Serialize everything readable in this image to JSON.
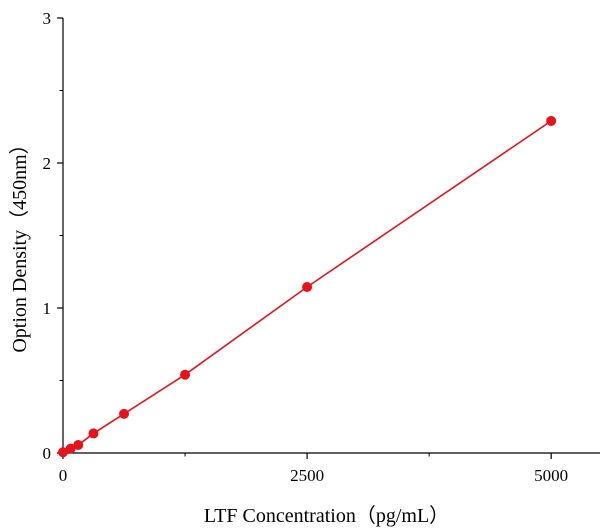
{
  "chart_data": {
    "type": "scatter",
    "title": "",
    "xlabel": "LTF Concentration（pg/mL）",
    "ylabel": "Option Density（450nm）",
    "xlim": [
      0,
      5500
    ],
    "ylim": [
      0,
      3
    ],
    "x_ticks": [
      0,
      2500,
      5000
    ],
    "x_tick_labels": [
      "0",
      "2500",
      "5000"
    ],
    "x_minor_ticks": [
      1250,
      3750
    ],
    "y_ticks": [
      0,
      1,
      2,
      3
    ],
    "y_tick_labels": [
      "0",
      "1",
      "2",
      "3"
    ],
    "y_minor_ticks": [
      0.5,
      1.5,
      2.5
    ],
    "grid": false,
    "legend": "none",
    "series": [
      {
        "color": "#e8121a",
        "fit_line": true,
        "points": [
          {
            "x": 0,
            "y": 0.005
          },
          {
            "x": 78,
            "y": 0.03
          },
          {
            "x": 156,
            "y": 0.055
          },
          {
            "x": 312,
            "y": 0.135
          },
          {
            "x": 625,
            "y": 0.27
          },
          {
            "x": 1250,
            "y": 0.54
          },
          {
            "x": 2500,
            "y": 1.145
          },
          {
            "x": 5000,
            "y": 2.29
          }
        ]
      }
    ]
  }
}
